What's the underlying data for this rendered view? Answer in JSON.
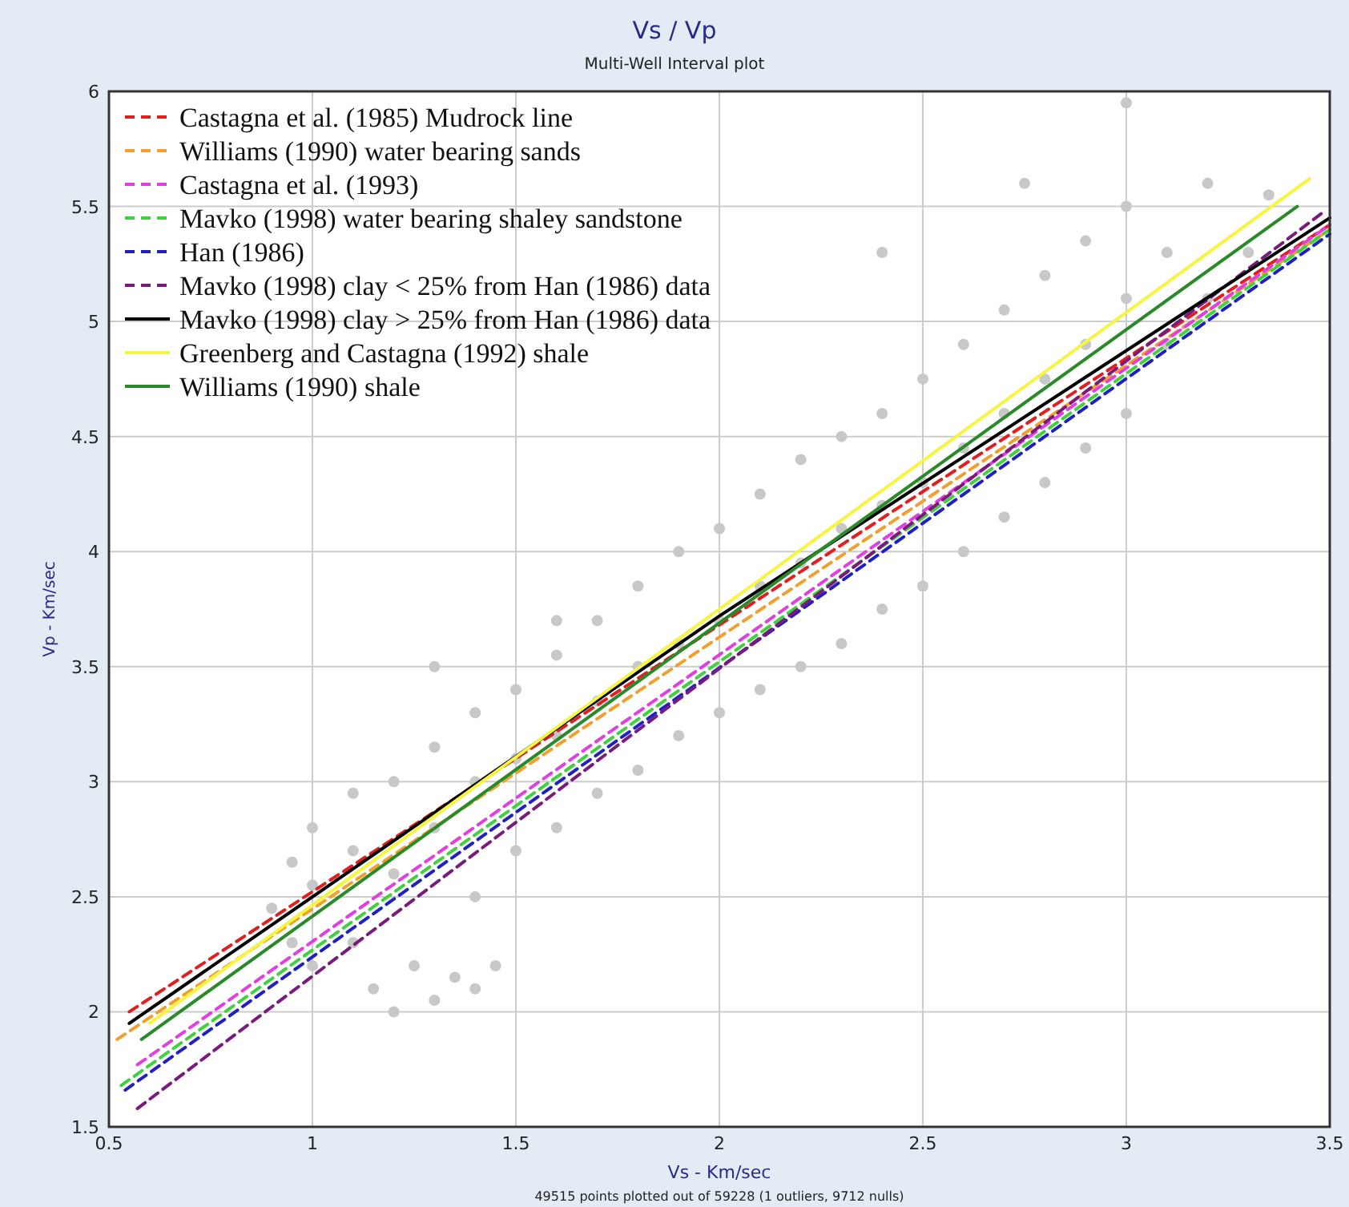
{
  "chart_data": {
    "type": "line",
    "title": "Vs / Vp",
    "subtitle": "Multi-Well Interval plot",
    "xlabel": "Vs - Km/sec",
    "ylabel": "Vp - Km/sec",
    "annotations": [
      "49515 points plotted out of  59228 (1 outliers, 9712 nulls)"
    ],
    "xlim": [
      0.5,
      3.5
    ],
    "ylim": [
      1.5,
      6
    ],
    "xticks": [
      0.5,
      1,
      1.5,
      2,
      2.5,
      3,
      3.5
    ],
    "yticks": [
      1.5,
      2,
      2.5,
      3,
      3.5,
      4,
      4.5,
      5,
      5.5,
      6
    ],
    "grid": true,
    "legend": "top left",
    "series": [
      {
        "type": "scatter",
        "marker": "circle",
        "color": "#c8c8c8",
        "x": [
          0.9,
          0.95,
          0.95,
          1.0,
          1.0,
          1.0,
          1.1,
          1.1,
          1.1,
          1.15,
          1.2,
          1.25,
          1.3,
          1.35,
          1.4,
          1.45,
          1.2,
          1.2,
          1.3,
          1.3,
          1.4,
          1.4,
          1.4,
          1.5,
          1.5,
          1.5,
          1.6,
          1.6,
          1.6,
          1.7,
          1.7,
          1.7,
          1.8,
          1.8,
          1.8,
          1.9,
          1.9,
          1.9,
          2.0,
          2.0,
          2.0,
          2.1,
          2.1,
          2.1,
          2.2,
          2.2,
          2.2,
          2.3,
          2.3,
          2.3,
          2.4,
          2.4,
          2.4,
          2.5,
          2.5,
          2.5,
          2.6,
          2.6,
          2.6,
          2.7,
          2.7,
          2.7,
          2.8,
          2.8,
          2.8,
          2.9,
          2.9,
          2.9,
          3.0,
          3.0,
          3.0,
          3.1,
          3.1,
          3.2,
          3.3,
          2.75,
          3.0,
          3.2,
          3.35,
          2.4,
          1.3,
          1.6
        ],
        "values": [
          2.45,
          2.3,
          2.65,
          2.2,
          2.55,
          2.8,
          2.3,
          2.7,
          2.95,
          2.1,
          2.0,
          2.2,
          2.05,
          2.15,
          2.1,
          2.2,
          2.6,
          3.0,
          2.8,
          3.15,
          2.5,
          3.0,
          3.3,
          2.7,
          3.1,
          3.4,
          2.8,
          3.2,
          3.55,
          2.95,
          3.35,
          3.7,
          3.05,
          3.5,
          3.85,
          3.2,
          3.6,
          4.0,
          3.3,
          3.7,
          4.1,
          3.4,
          3.85,
          4.25,
          3.5,
          3.95,
          4.4,
          3.6,
          4.1,
          4.5,
          3.75,
          4.2,
          4.6,
          3.85,
          4.3,
          4.75,
          4.0,
          4.45,
          4.9,
          4.15,
          4.6,
          5.05,
          4.3,
          4.75,
          5.2,
          4.45,
          4.9,
          5.35,
          4.6,
          5.1,
          5.5,
          4.9,
          5.3,
          5.1,
          5.3,
          5.6,
          5.95,
          5.6,
          5.55,
          5.3,
          3.5,
          3.7
        ]
      },
      {
        "name": "Castagna et al. (1985) Mudrock line",
        "color": "#e02020",
        "line_style": "dashed",
        "x": [
          0.55,
          3.5
        ],
        "values": [
          2.0,
          5.42
        ]
      },
      {
        "name": "Williams (1990) water bearing sands",
        "color": "#f0a030",
        "line_style": "dashed",
        "x": [
          0.52,
          3.5
        ],
        "values": [
          1.88,
          5.4
        ]
      },
      {
        "name": "Castagna et al. (1993)",
        "color": "#e040e0",
        "line_style": "dashed",
        "x": [
          0.57,
          3.5
        ],
        "values": [
          1.77,
          5.42
        ]
      },
      {
        "name": "Mavko (1998) water bearing shaley sandstone",
        "color": "#40d040",
        "line_style": "dashed",
        "x": [
          0.53,
          3.5
        ],
        "values": [
          1.68,
          5.4
        ]
      },
      {
        "name": "Han (1986)",
        "color": "#2020c0",
        "line_style": "dashed",
        "x": [
          0.54,
          3.5
        ],
        "values": [
          1.66,
          5.38
        ]
      },
      {
        "name": "Mavko (1998) clay < 25% from Han (1986) data",
        "color": "#7a1a7a",
        "line_style": "dashed",
        "x": [
          0.57,
          3.48
        ],
        "values": [
          1.58,
          5.47
        ]
      },
      {
        "name": "Mavko (1998) clay > 25% from Han (1986) data",
        "color": "#000000",
        "line_style": "solid",
        "x": [
          0.55,
          2.0,
          3.5
        ],
        "values": [
          1.95,
          3.72,
          5.45
        ]
      },
      {
        "name": "Greenberg and Castagna (1992) shale",
        "color": "#f5f542",
        "line_style": "solid",
        "x": [
          0.6,
          2.0,
          3.45
        ],
        "values": [
          1.95,
          3.75,
          5.62
        ]
      },
      {
        "name": "Williams (1990) shale",
        "color": "#2a8a2a",
        "line_style": "solid",
        "x": [
          0.58,
          3.42
        ],
        "values": [
          1.88,
          5.5
        ]
      }
    ]
  }
}
